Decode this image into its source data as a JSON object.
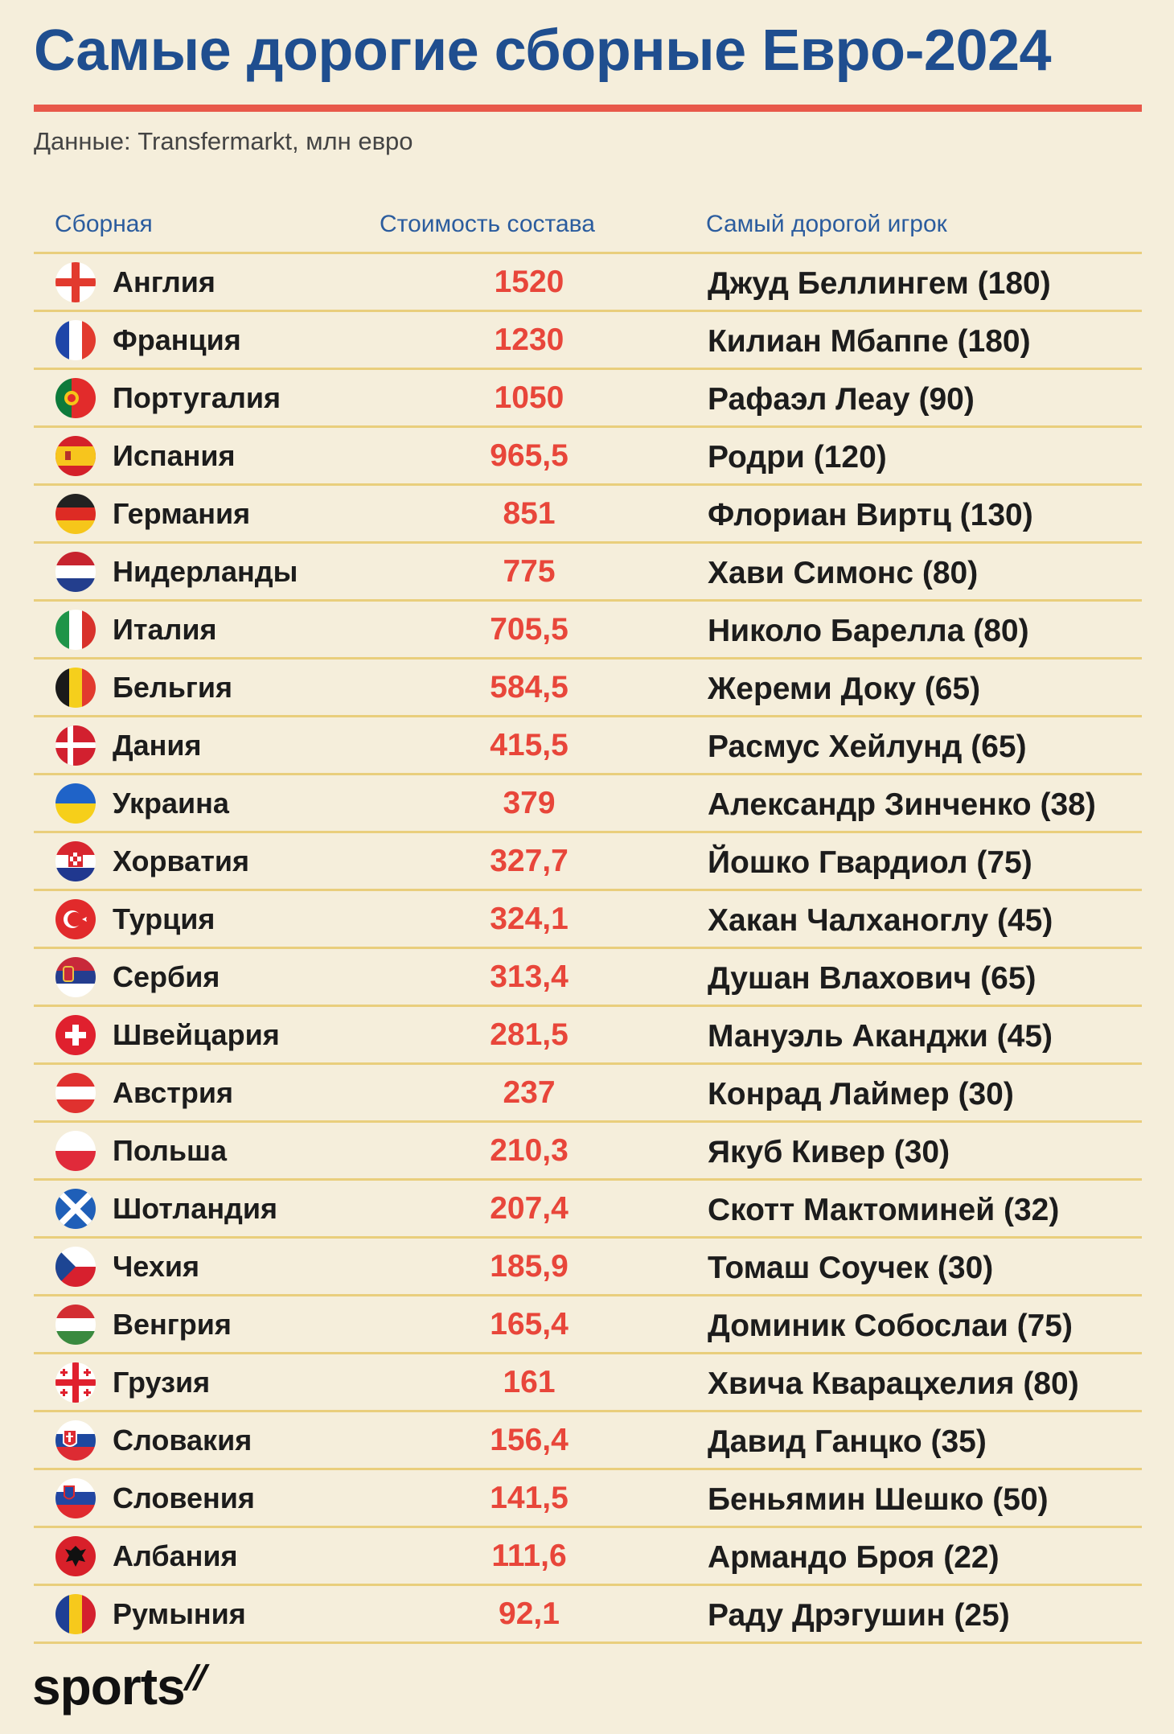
{
  "title": "Самые дорогие сборные Евро-2024",
  "source": "Данные: Transfermarkt, млн евро",
  "columns": {
    "team": "Сборная",
    "value": "Стоимость состава",
    "player": "Самый дорогой игрок"
  },
  "brand": "sports",
  "colors": {
    "title": "#1f4e8f",
    "accent_bar": "#e8584a",
    "value_text": "#e8463a",
    "row_divider": "#e9ce7c",
    "background": "#f5eedb"
  },
  "chart_data": {
    "type": "table",
    "title": "Самые дорогие сборные Евро-2024",
    "subtitle": "Данные: Transfermarkt, млн евро",
    "columns": [
      "Сборная",
      "Стоимость состава",
      "Самый дорогой игрок"
    ],
    "rows": [
      {
        "flag": "england-flag-icon",
        "team": "Англия",
        "value": "1520",
        "player": "Джуд Беллингем (180)"
      },
      {
        "flag": "france-flag-icon",
        "team": "Франция",
        "value": "1230",
        "player": "Килиан Мбаппе (180)"
      },
      {
        "flag": "portugal-flag-icon",
        "team": "Португалия",
        "value": "1050",
        "player": "Рафаэл Леау (90)"
      },
      {
        "flag": "spain-flag-icon",
        "team": "Испания",
        "value": "965,5",
        "player": "Родри (120)"
      },
      {
        "flag": "germany-flag-icon",
        "team": "Германия",
        "value": "851",
        "player": "Флориан Виртц (130)"
      },
      {
        "flag": "netherlands-flag-icon",
        "team": "Нидерланды",
        "value": "775",
        "player": "Хави Симонс (80)"
      },
      {
        "flag": "italy-flag-icon",
        "team": "Италия",
        "value": "705,5",
        "player": "Николо Барелла (80)"
      },
      {
        "flag": "belgium-flag-icon",
        "team": "Бельгия",
        "value": "584,5",
        "player": "Жереми Доку (65)"
      },
      {
        "flag": "denmark-flag-icon",
        "team": "Дания",
        "value": "415,5",
        "player": "Расмус Хейлунд (65)"
      },
      {
        "flag": "ukraine-flag-icon",
        "team": "Украина",
        "value": "379",
        "player": "Александр Зинченко (38)"
      },
      {
        "flag": "croatia-flag-icon",
        "team": "Хорватия",
        "value": "327,7",
        "player": "Йошко Гвардиол (75)"
      },
      {
        "flag": "turkey-flag-icon",
        "team": "Турция",
        "value": "324,1",
        "player": "Хакан Чалханоглу (45)"
      },
      {
        "flag": "serbia-flag-icon",
        "team": "Сербия",
        "value": "313,4",
        "player": "Душан Влахович (65)"
      },
      {
        "flag": "switzerland-flag-icon",
        "team": "Швейцария",
        "value": "281,5",
        "player": "Мануэль Аканджи (45)"
      },
      {
        "flag": "austria-flag-icon",
        "team": "Австрия",
        "value": "237",
        "player": "Конрад Лаймер (30)"
      },
      {
        "flag": "poland-flag-icon",
        "team": "Польша",
        "value": "210,3",
        "player": "Якуб Кивер (30)"
      },
      {
        "flag": "scotland-flag-icon",
        "team": "Шотландия",
        "value": "207,4",
        "player": "Скотт Мактоминей (32)"
      },
      {
        "flag": "czechia-flag-icon",
        "team": "Чехия",
        "value": "185,9",
        "player": "Томаш Соучек (30)"
      },
      {
        "flag": "hungary-flag-icon",
        "team": "Венгрия",
        "value": "165,4",
        "player": "Доминик Собослаи (75)"
      },
      {
        "flag": "georgia-flag-icon",
        "team": "Грузия",
        "value": "161",
        "player": "Хвича Кварацхелия (80)"
      },
      {
        "flag": "slovakia-flag-icon",
        "team": "Словакия",
        "value": "156,4",
        "player": "Давид Ганцко (35)"
      },
      {
        "flag": "slovenia-flag-icon",
        "team": "Словения",
        "value": "141,5",
        "player": "Беньямин Шешко (50)"
      },
      {
        "flag": "albania-flag-icon",
        "team": "Албания",
        "value": "111,6",
        "player": "Армандо Броя (22)"
      },
      {
        "flag": "romania-flag-icon",
        "team": "Румыния",
        "value": "92,1",
        "player": "Раду Дрэгушин (25)"
      }
    ]
  }
}
